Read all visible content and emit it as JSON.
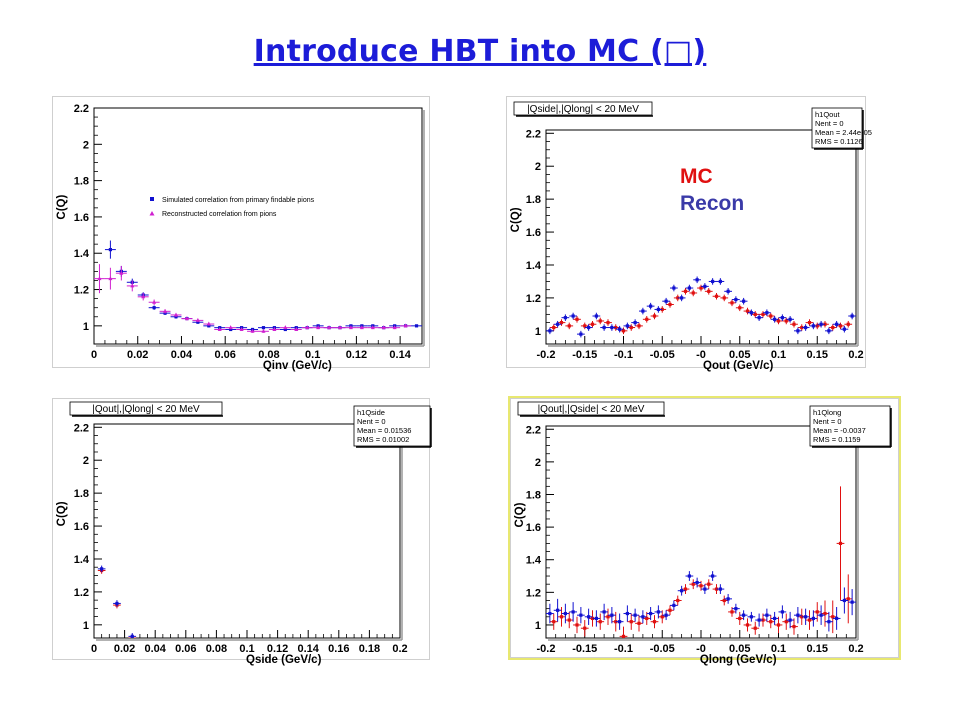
{
  "slide": {
    "title": "Introduce HBT into MC (□)"
  },
  "legend_mc_recon": {
    "mc": "MC",
    "recon": "Recon",
    "mc_color": "#e01010",
    "recon_color": "#3a3aa8"
  },
  "colors": {
    "blue": "#1010d0",
    "red": "#e01010",
    "magenta": "#d020d0",
    "frame_highlight": "#e8e870"
  },
  "chart_data": [
    {
      "id": "qinv",
      "type": "scatter",
      "xlabel": "Qinv (GeV/c)",
      "ylabel": "C(Q)",
      "xlim": [
        0,
        0.15
      ],
      "ylim": [
        0.9,
        2.2
      ],
      "xticks": [
        "0",
        "0.02",
        "0.04",
        "0.06",
        "0.08",
        "0.1",
        "0.12",
        "0.14"
      ],
      "xtick_values": [
        0,
        0.02,
        0.04,
        0.06,
        0.08,
        0.1,
        0.12,
        0.14
      ],
      "yticks": [
        "1",
        "1.2",
        "1.4",
        "1.6",
        "1.8",
        "2",
        "2.2"
      ],
      "ytick_values": [
        1,
        1.2,
        1.4,
        1.6,
        1.8,
        2,
        2.2
      ],
      "legend": [
        {
          "label": "Simulated correlation from primary findable pions",
          "color": "#1010d0"
        },
        {
          "label": "Reconstructed correlation from pions",
          "color": "#d020d0"
        }
      ],
      "series": [
        {
          "name": "Simulated correlation from primary findable pions",
          "color": "#1010d0",
          "x": [
            0.0075,
            0.0125,
            0.0175,
            0.0225,
            0.0275,
            0.0325,
            0.0375,
            0.0425,
            0.0475,
            0.0525,
            0.0575,
            0.0625,
            0.0675,
            0.0725,
            0.0775,
            0.0825,
            0.0875,
            0.0925,
            0.0975,
            0.1025,
            0.1075,
            0.1125,
            0.1175,
            0.1225,
            0.1275,
            0.1325,
            0.1375,
            0.1425,
            0.1475
          ],
          "y": [
            1.42,
            1.3,
            1.24,
            1.17,
            1.1,
            1.07,
            1.05,
            1.04,
            1.02,
            1.0,
            0.99,
            0.98,
            0.99,
            0.98,
            0.99,
            0.99,
            0.98,
            0.99,
            0.99,
            1.0,
            0.99,
            0.99,
            1.0,
            1.0,
            1.0,
            0.99,
            1.0,
            1.0,
            1.0
          ],
          "err": [
            0.05,
            0.03,
            0.02,
            0.015,
            0.012,
            0.01,
            0.01,
            0.008,
            0.008,
            0.008,
            0.006,
            0.006,
            0.006,
            0.006,
            0.006,
            0.006,
            0.006,
            0.006,
            0.006,
            0.006,
            0.006,
            0.006,
            0.006,
            0.006,
            0.006,
            0.006,
            0.006,
            0.006,
            0.006
          ]
        },
        {
          "name": "Reconstructed correlation from pions",
          "color": "#d020d0",
          "x": [
            0.0025,
            0.0075,
            0.0125,
            0.0175,
            0.0225,
            0.0275,
            0.0325,
            0.0375,
            0.0425,
            0.0475,
            0.0525,
            0.0575,
            0.0625,
            0.0675,
            0.0725,
            0.0775,
            0.0825,
            0.0875,
            0.0925,
            0.0975,
            0.1025,
            0.1075,
            0.1125,
            0.1175,
            0.1225,
            0.1275,
            0.1325,
            0.1375,
            0.1425
          ],
          "y": [
            1.26,
            1.26,
            1.29,
            1.22,
            1.16,
            1.13,
            1.08,
            1.06,
            1.04,
            1.03,
            1.01,
            0.98,
            0.99,
            0.98,
            0.97,
            0.97,
            0.98,
            0.99,
            0.98,
            0.99,
            0.99,
            0.99,
            0.99,
            0.99,
            0.99,
            0.99,
            0.99,
            0.99,
            1.0
          ],
          "err": [
            0.08,
            0.06,
            0.04,
            0.03,
            0.02,
            0.015,
            0.012,
            0.01,
            0.01,
            0.008,
            0.008,
            0.008,
            0.008,
            0.008,
            0.008,
            0.008,
            0.008,
            0.008,
            0.008,
            0.008,
            0.008,
            0.008,
            0.008,
            0.008,
            0.008,
            0.008,
            0.008,
            0.008,
            0.008
          ]
        }
      ]
    },
    {
      "id": "qout",
      "type": "scatter",
      "title": "|Qside|,|Qlong| < 20 MeV",
      "xlabel": "Qout (GeV/c)",
      "ylabel": "C(Q)",
      "xlim": [
        -0.2,
        0.2
      ],
      "ylim": [
        0.92,
        2.22
      ],
      "xticks": [
        "-0.2",
        "-0.15",
        "-0.1",
        "-0.05",
        "-0",
        "0.05",
        "0.1",
        "0.15",
        "0.2"
      ],
      "xtick_values": [
        -0.2,
        -0.15,
        -0.1,
        -0.05,
        0,
        0.05,
        0.1,
        0.15,
        0.2
      ],
      "yticks": [
        "1",
        "1.2",
        "1.4",
        "1.6",
        "1.8",
        "2",
        "2.2"
      ],
      "ytick_values": [
        1,
        1.2,
        1.4,
        1.6,
        1.8,
        2,
        2.2
      ],
      "stats": {
        "name": "h1Qout",
        "lines": [
          "Nent = 0",
          "Mean  = 2.44e-05",
          "RMS   = 0.1126"
        ]
      },
      "series": [
        {
          "name": "MC",
          "color": "#e01010",
          "x": [
            -0.19,
            -0.18,
            -0.17,
            -0.16,
            -0.15,
            -0.14,
            -0.13,
            -0.12,
            -0.11,
            -0.1,
            -0.09,
            -0.08,
            -0.07,
            -0.06,
            -0.05,
            -0.04,
            -0.03,
            -0.02,
            -0.01,
            0.0,
            0.01,
            0.02,
            0.03,
            0.04,
            0.05,
            0.06,
            0.07,
            0.08,
            0.09,
            0.1,
            0.11,
            0.12,
            0.13,
            0.14,
            0.15,
            0.16,
            0.17,
            0.18,
            0.19
          ],
          "y": [
            1.02,
            1.05,
            1.03,
            1.07,
            1.03,
            1.04,
            1.06,
            1.05,
            1.02,
            1.0,
            1.02,
            1.03,
            1.07,
            1.09,
            1.13,
            1.16,
            1.2,
            1.24,
            1.23,
            1.26,
            1.24,
            1.21,
            1.2,
            1.17,
            1.14,
            1.12,
            1.1,
            1.1,
            1.09,
            1.06,
            1.06,
            1.04,
            1.02,
            1.05,
            1.03,
            1.04,
            1.02,
            1.03,
            1.04
          ],
          "err": [
            0.02,
            0.02,
            0.02,
            0.02,
            0.02,
            0.02,
            0.02,
            0.02,
            0.02,
            0.02,
            0.02,
            0.02,
            0.02,
            0.02,
            0.02,
            0.02,
            0.02,
            0.02,
            0.02,
            0.02,
            0.02,
            0.02,
            0.02,
            0.02,
            0.02,
            0.02,
            0.02,
            0.02,
            0.02,
            0.02,
            0.02,
            0.02,
            0.02,
            0.02,
            0.02,
            0.02,
            0.02,
            0.02,
            0.02
          ]
        },
        {
          "name": "Recon",
          "color": "#1010d0",
          "x": [
            -0.195,
            -0.185,
            -0.175,
            -0.165,
            -0.155,
            -0.145,
            -0.135,
            -0.125,
            -0.115,
            -0.105,
            -0.095,
            -0.085,
            -0.075,
            -0.065,
            -0.055,
            -0.045,
            -0.035,
            -0.025,
            -0.015,
            -0.005,
            0.005,
            0.015,
            0.025,
            0.035,
            0.045,
            0.055,
            0.065,
            0.075,
            0.085,
            0.095,
            0.105,
            0.115,
            0.125,
            0.135,
            0.145,
            0.155,
            0.165,
            0.175,
            0.185,
            0.195
          ],
          "y": [
            1.0,
            1.04,
            1.08,
            1.09,
            0.98,
            1.02,
            1.09,
            1.02,
            1.02,
            1.01,
            1.03,
            1.05,
            1.12,
            1.15,
            1.13,
            1.18,
            1.26,
            1.2,
            1.26,
            1.31,
            1.27,
            1.3,
            1.3,
            1.24,
            1.19,
            1.18,
            1.11,
            1.08,
            1.11,
            1.07,
            1.08,
            1.07,
            1.0,
            1.02,
            1.03,
            1.04,
            1.0,
            1.04,
            1.01,
            1.09
          ],
          "err": [
            0.02,
            0.02,
            0.02,
            0.02,
            0.02,
            0.02,
            0.02,
            0.02,
            0.02,
            0.02,
            0.02,
            0.02,
            0.02,
            0.02,
            0.02,
            0.02,
            0.02,
            0.02,
            0.02,
            0.02,
            0.02,
            0.02,
            0.02,
            0.02,
            0.02,
            0.02,
            0.02,
            0.02,
            0.02,
            0.02,
            0.02,
            0.02,
            0.02,
            0.02,
            0.02,
            0.02,
            0.02,
            0.02,
            0.02,
            0.02
          ]
        }
      ]
    },
    {
      "id": "qside",
      "type": "scatter",
      "title": "|Qout|,|Qlong| < 20 MeV",
      "xlabel": "Qside (GeV/c)",
      "ylabel": "C(Q)",
      "xlim": [
        0,
        0.2
      ],
      "ylim": [
        0.92,
        2.22
      ],
      "xticks": [
        "0",
        "0.02",
        "0.04",
        "0.06",
        "0.08",
        "0.1",
        "0.12",
        "0.14",
        "0.16",
        "0.18",
        "0.2"
      ],
      "xtick_values": [
        0,
        0.02,
        0.04,
        0.06,
        0.08,
        0.1,
        0.12,
        0.14,
        0.16,
        0.18,
        0.2
      ],
      "yticks": [
        "1",
        "1.2",
        "1.4",
        "1.6",
        "1.8",
        "2",
        "2.2"
      ],
      "ytick_values": [
        1,
        1.2,
        1.4,
        1.6,
        1.8,
        2,
        2.2
      ],
      "stats": {
        "name": "h1Qside",
        "lines": [
          "Nent = 0",
          "Mean  = 0.01536",
          "RMS   = 0.01002"
        ]
      },
      "series": [
        {
          "name": "MC",
          "color": "#e01010",
          "x": [
            0.005,
            0.015,
            0.025
          ],
          "y": [
            1.33,
            1.12,
            0.92
          ],
          "err": [
            0.02,
            0.02,
            0.02
          ]
        },
        {
          "name": "Recon",
          "color": "#1010d0",
          "x": [
            0.005,
            0.015,
            0.025
          ],
          "y": [
            1.34,
            1.13,
            0.93
          ],
          "err": [
            0.02,
            0.02,
            0.02
          ]
        }
      ]
    },
    {
      "id": "qlong",
      "type": "scatter",
      "title": "|Qout|,|Qside| < 20 MeV",
      "xlabel": "Qlong (GeV/c)",
      "ylabel": "C(Q)",
      "xlim": [
        -0.2,
        0.2
      ],
      "ylim": [
        0.92,
        2.22
      ],
      "xticks": [
        "-0.2",
        "-0.15",
        "-0.1",
        "-0.05",
        "-0",
        "0.05",
        "0.1",
        "0.15",
        "0.2"
      ],
      "xtick_values": [
        -0.2,
        -0.15,
        -0.1,
        -0.05,
        0,
        0.05,
        0.1,
        0.15,
        0.2
      ],
      "yticks": [
        "1",
        "1.2",
        "1.4",
        "1.6",
        "1.8",
        "2",
        "2.2"
      ],
      "ytick_values": [
        1,
        1.2,
        1.4,
        1.6,
        1.8,
        2,
        2.2
      ],
      "stats": {
        "name": "h1Qlong",
        "lines": [
          "Nent = 0",
          "Mean  = -0.0037",
          "RMS   = 0.1159"
        ]
      },
      "series": [
        {
          "name": "MC",
          "color": "#e01010",
          "x": [
            -0.19,
            -0.18,
            -0.17,
            -0.16,
            -0.15,
            -0.14,
            -0.13,
            -0.12,
            -0.11,
            -0.1,
            -0.09,
            -0.08,
            -0.07,
            -0.06,
            -0.05,
            -0.04,
            -0.03,
            -0.02,
            -0.01,
            0.0,
            0.01,
            0.02,
            0.03,
            0.04,
            0.05,
            0.06,
            0.07,
            0.08,
            0.09,
            0.1,
            0.11,
            0.12,
            0.13,
            0.14,
            0.15,
            0.16,
            0.17,
            0.18,
            0.19
          ],
          "y": [
            1.02,
            1.05,
            1.03,
            1.0,
            0.98,
            1.04,
            1.02,
            1.05,
            1.02,
            0.93,
            1.02,
            1.01,
            1.04,
            1.02,
            1.05,
            1.09,
            1.15,
            1.22,
            1.25,
            1.24,
            1.25,
            1.22,
            1.15,
            1.08,
            1.04,
            1.0,
            0.98,
            1.03,
            1.02,
            1.0,
            1.02,
            0.99,
            1.05,
            1.03,
            1.08,
            1.07,
            1.05,
            1.5,
            1.16
          ],
          "err": [
            0.05,
            0.06,
            0.05,
            0.05,
            0.05,
            0.05,
            0.05,
            0.05,
            0.06,
            0.06,
            0.05,
            0.05,
            0.04,
            0.04,
            0.04,
            0.03,
            0.03,
            0.03,
            0.03,
            0.03,
            0.03,
            0.03,
            0.03,
            0.03,
            0.04,
            0.04,
            0.04,
            0.04,
            0.04,
            0.05,
            0.05,
            0.05,
            0.05,
            0.06,
            0.06,
            0.08,
            0.1,
            0.35,
            0.15
          ]
        },
        {
          "name": "Recon",
          "color": "#1010d0",
          "x": [
            -0.195,
            -0.185,
            -0.175,
            -0.165,
            -0.155,
            -0.145,
            -0.135,
            -0.125,
            -0.115,
            -0.105,
            -0.095,
            -0.085,
            -0.075,
            -0.065,
            -0.055,
            -0.045,
            -0.035,
            -0.025,
            -0.015,
            -0.005,
            0.005,
            0.015,
            0.025,
            0.035,
            0.045,
            0.055,
            0.065,
            0.075,
            0.085,
            0.095,
            0.105,
            0.115,
            0.125,
            0.135,
            0.145,
            0.155,
            0.165,
            0.175,
            0.185,
            0.195
          ],
          "y": [
            1.07,
            1.09,
            1.07,
            1.08,
            1.06,
            1.05,
            1.04,
            1.08,
            1.06,
            1.02,
            1.07,
            1.06,
            1.05,
            1.07,
            1.08,
            1.06,
            1.12,
            1.21,
            1.3,
            1.26,
            1.22,
            1.3,
            1.22,
            1.16,
            1.1,
            1.06,
            1.05,
            1.03,
            1.06,
            1.04,
            1.08,
            1.03,
            1.06,
            1.05,
            1.04,
            1.06,
            1.02,
            1.04,
            1.15,
            1.14
          ],
          "err": [
            0.06,
            0.07,
            0.06,
            0.06,
            0.05,
            0.05,
            0.05,
            0.05,
            0.05,
            0.05,
            0.05,
            0.04,
            0.04,
            0.04,
            0.04,
            0.03,
            0.03,
            0.03,
            0.03,
            0.03,
            0.03,
            0.03,
            0.03,
            0.03,
            0.03,
            0.03,
            0.03,
            0.04,
            0.04,
            0.04,
            0.04,
            0.05,
            0.05,
            0.05,
            0.05,
            0.06,
            0.06,
            0.07,
            0.08,
            0.08
          ]
        }
      ]
    }
  ]
}
